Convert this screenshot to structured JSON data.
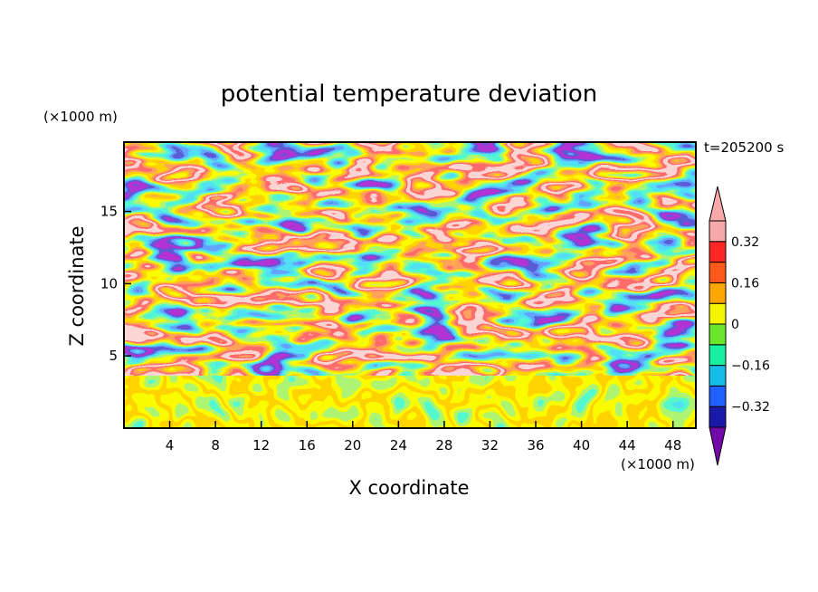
{
  "chart_data": {
    "type": "heatmap",
    "title": "potential temperature deviation",
    "xlabel": "X coordinate",
    "ylabel": "Z coordinate",
    "x_unit": "(×1000 m)",
    "y_unit": "(×1000 m)",
    "time_label": "t=205200 s",
    "xlim": [
      0,
      50
    ],
    "ylim": [
      0,
      19.8
    ],
    "x_ticks": [
      4,
      8,
      12,
      16,
      20,
      24,
      28,
      32,
      36,
      40,
      44,
      48
    ],
    "y_ticks": [
      5,
      10,
      15
    ],
    "colorbar": {
      "levels": [
        -0.4,
        -0.32,
        -0.24,
        -0.16,
        -0.08,
        0,
        0.08,
        0.16,
        0.24,
        0.32,
        0.4
      ],
      "labels": [
        {
          "value": 0.32,
          "text": "0.32"
        },
        {
          "value": 0.16,
          "text": "0.16"
        },
        {
          "value": 0,
          "text": "0"
        },
        {
          "value": -0.16,
          "text": "−0.16"
        },
        {
          "value": -0.32,
          "text": "−0.32"
        }
      ],
      "colors": [
        "#7209a8",
        "#1a1aa8",
        "#1f60ff",
        "#16bde8",
        "#17f0a0",
        "#6ce62c",
        "#f5f500",
        "#ffa500",
        "#ff5a1c",
        "#ff2626",
        "#f7a8a8",
        "#f7a8a8"
      ],
      "extend": "both"
    },
    "grid": false
  }
}
